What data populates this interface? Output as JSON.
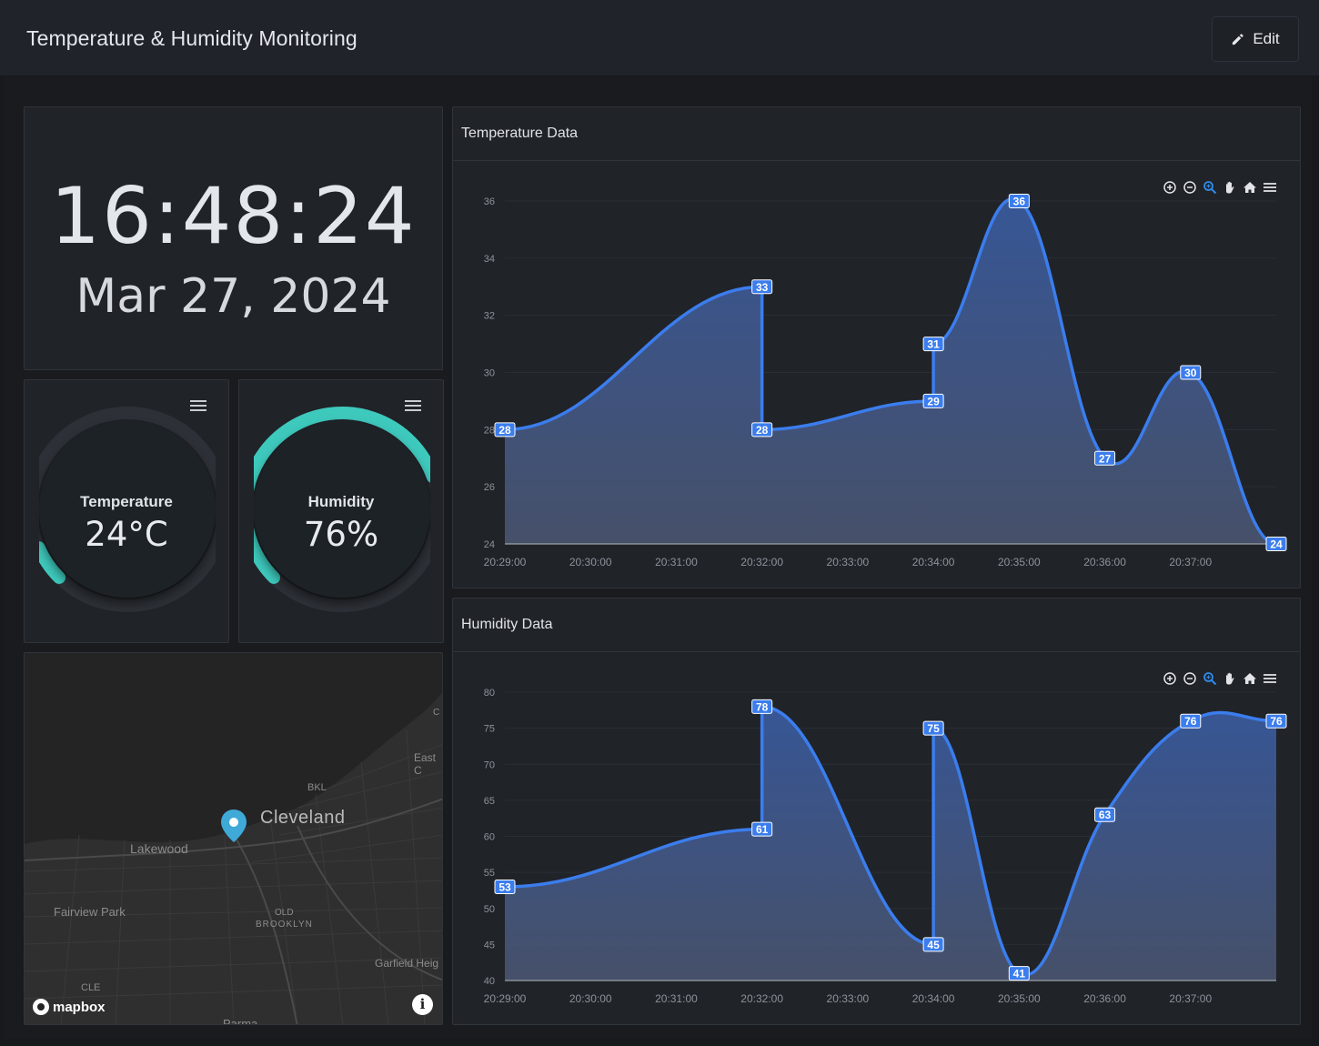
{
  "header": {
    "title": "Temperature & Humidity Monitoring",
    "edit_label": "Edit"
  },
  "clock": {
    "time": "16:48:24",
    "date": "Mar 27, 2024"
  },
  "gauges": {
    "temperature": {
      "label": "Temperature",
      "value": "24°C",
      "fraction": 0.08,
      "color": "#3ec9bd"
    },
    "humidity": {
      "label": "Humidity",
      "value": "76%",
      "fraction": 0.76,
      "color": "#3ec9bd"
    }
  },
  "map": {
    "city": "Cleveland",
    "labels": [
      "Lakewood",
      "Fairview Park",
      "BKL",
      "OLD",
      "BROOKLYN",
      "Garfield Heig",
      "East C",
      "CLE",
      "C",
      "Parma"
    ],
    "attribution": "mapbox",
    "info_label": "i"
  },
  "charts": {
    "temperature": {
      "title": "Temperature Data"
    },
    "humidity": {
      "title": "Humidity Data"
    }
  },
  "chart_data": [
    {
      "type": "area",
      "title": "Temperature Data",
      "x": [
        "20:29:00",
        "20:32:00",
        "20:32:00",
        "20:34:00",
        "20:34:00",
        "20:35:00",
        "20:36:00",
        "20:37:00",
        "20:38:00"
      ],
      "x_ticks": [
        "20:29:00",
        "20:30:00",
        "20:31:00",
        "20:32:00",
        "20:33:00",
        "20:34:00",
        "20:35:00",
        "20:36:00",
        "20:37:00"
      ],
      "series": [
        {
          "values": [
            28,
            33,
            28,
            29,
            31,
            36,
            27,
            30,
            24
          ]
        }
      ],
      "y_ticks": [
        24,
        26,
        28,
        30,
        32,
        34,
        36
      ],
      "ylim": [
        24,
        36
      ],
      "color": "#3b7ded",
      "grid": true
    },
    {
      "type": "area",
      "title": "Humidity Data",
      "x": [
        "20:29:00",
        "20:32:00",
        "20:32:00",
        "20:34:00",
        "20:34:00",
        "20:35:00",
        "20:36:00",
        "20:37:00",
        "20:38:00"
      ],
      "x_ticks": [
        "20:29:00",
        "20:30:00",
        "20:31:00",
        "20:32:00",
        "20:33:00",
        "20:34:00",
        "20:35:00",
        "20:36:00",
        "20:37:00"
      ],
      "series": [
        {
          "values": [
            53,
            61,
            78,
            45,
            75,
            41,
            63,
            76,
            76
          ]
        }
      ],
      "y_ticks": [
        40,
        45,
        50,
        55,
        60,
        65,
        70,
        75,
        80
      ],
      "ylim": [
        40,
        80
      ],
      "color": "#3b7ded",
      "grid": true
    }
  ],
  "toolbar": {
    "icons": [
      "zoom-in-icon",
      "zoom-out-icon",
      "zoom-select-icon",
      "pan-icon",
      "home-icon",
      "menu-icon"
    ]
  }
}
